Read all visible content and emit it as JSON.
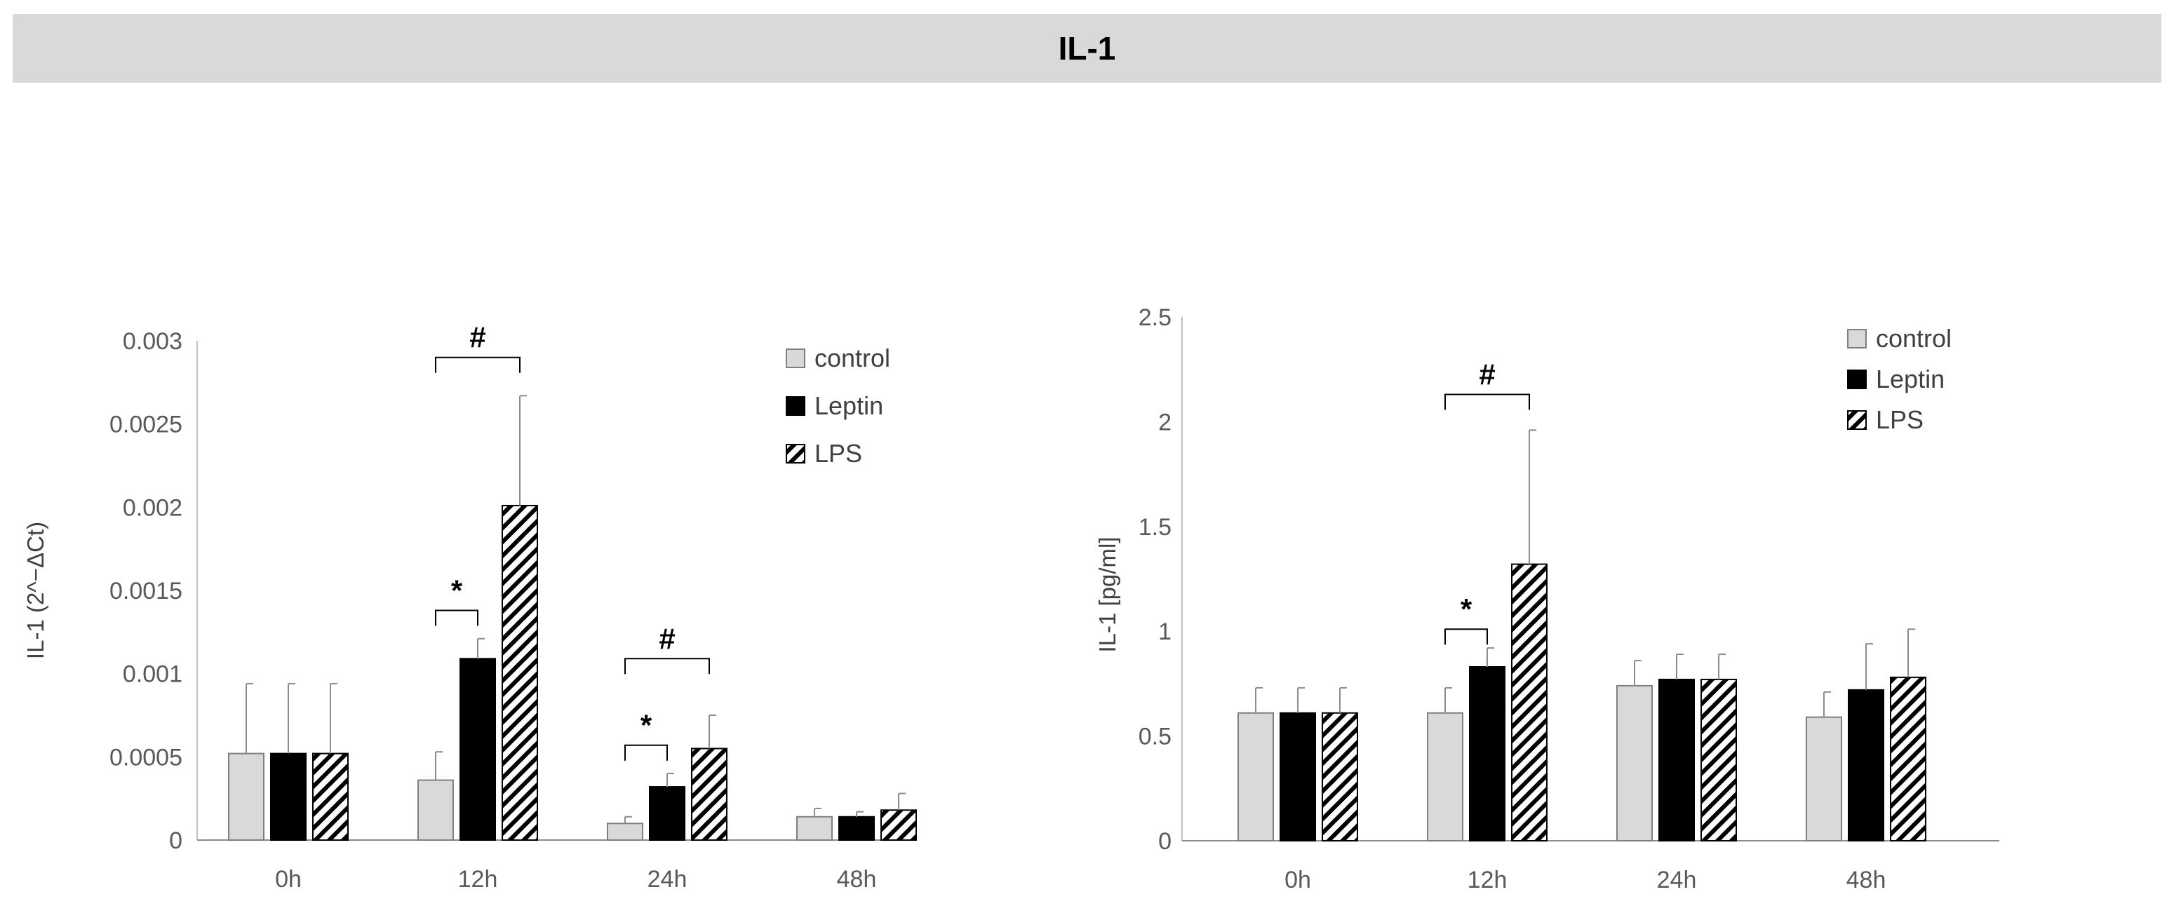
{
  "page_title": "IL-1",
  "colors": {
    "control": "#d9d9d9",
    "leptin": "#000000",
    "lps_stripe": "#000000",
    "axis": "#595959",
    "error": "#808080"
  },
  "chart_data": [
    {
      "type": "bar",
      "title": "",
      "xlabel": "",
      "ylabel": "IL-1    (2^−ΔCt)",
      "categories": [
        "0h",
        "12h",
        "24h",
        "48h"
      ],
      "yticks": [
        "0",
        "0.0005",
        "0.001",
        "0.0015",
        "0.002",
        "0.0025",
        "0.003"
      ],
      "ylim": [
        0,
        0.003
      ],
      "legend_position": "top-right",
      "series": [
        {
          "name": "control",
          "values": [
            0.00052,
            0.00036,
            0.0001,
            0.00014
          ],
          "errors": [
            0.00042,
            0.00017,
            4e-05,
            5e-05
          ]
        },
        {
          "name": "Leptin",
          "values": [
            0.00052,
            0.00109,
            0.00032,
            0.00014
          ],
          "errors": [
            0.00042,
            0.00012,
            8e-05,
            3e-05
          ]
        },
        {
          "name": "LPS",
          "values": [
            0.00052,
            0.00201,
            0.00055,
            0.00018
          ],
          "errors": [
            0.00042,
            0.00066,
            0.0002,
            0.0001
          ]
        }
      ],
      "annotations": [
        {
          "symbol": "#",
          "category": 1,
          "from_series": 0,
          "to_series": 2,
          "level": 0.0029
        },
        {
          "symbol": "*",
          "category": 1,
          "from_series": 0,
          "to_series": 1,
          "level": 0.00138
        },
        {
          "symbol": "#",
          "category": 2,
          "from_series": 0,
          "to_series": 2,
          "level": 0.00109
        },
        {
          "symbol": "*",
          "category": 2,
          "from_series": 0,
          "to_series": 1,
          "level": 0.00057
        }
      ]
    },
    {
      "type": "bar",
      "title": "",
      "xlabel": "",
      "ylabel": "IL-1 [pg/ml]",
      "categories": [
        "0h",
        "12h",
        "24h",
        "48h"
      ],
      "yticks": [
        "0",
        "0.5",
        "1",
        "1.5",
        "2",
        "2.5"
      ],
      "ylim": [
        0,
        2.5
      ],
      "legend_position": "top-right",
      "series": [
        {
          "name": "control",
          "values": [
            0.61,
            0.61,
            0.74,
            0.59
          ],
          "errors": [
            0.12,
            0.12,
            0.12,
            0.12
          ]
        },
        {
          "name": "Leptin",
          "values": [
            0.61,
            0.83,
            0.77,
            0.72
          ],
          "errors": [
            0.12,
            0.09,
            0.12,
            0.22
          ]
        },
        {
          "name": "LPS",
          "values": [
            0.61,
            1.32,
            0.77,
            0.78
          ],
          "errors": [
            0.12,
            0.64,
            0.12,
            0.23
          ]
        }
      ],
      "annotations": [
        {
          "symbol": "#",
          "category": 1,
          "from_series": 0,
          "to_series": 2,
          "level": 2.13
        },
        {
          "symbol": "*",
          "category": 1,
          "from_series": 0,
          "to_series": 1,
          "level": 1.01
        }
      ]
    }
  ]
}
